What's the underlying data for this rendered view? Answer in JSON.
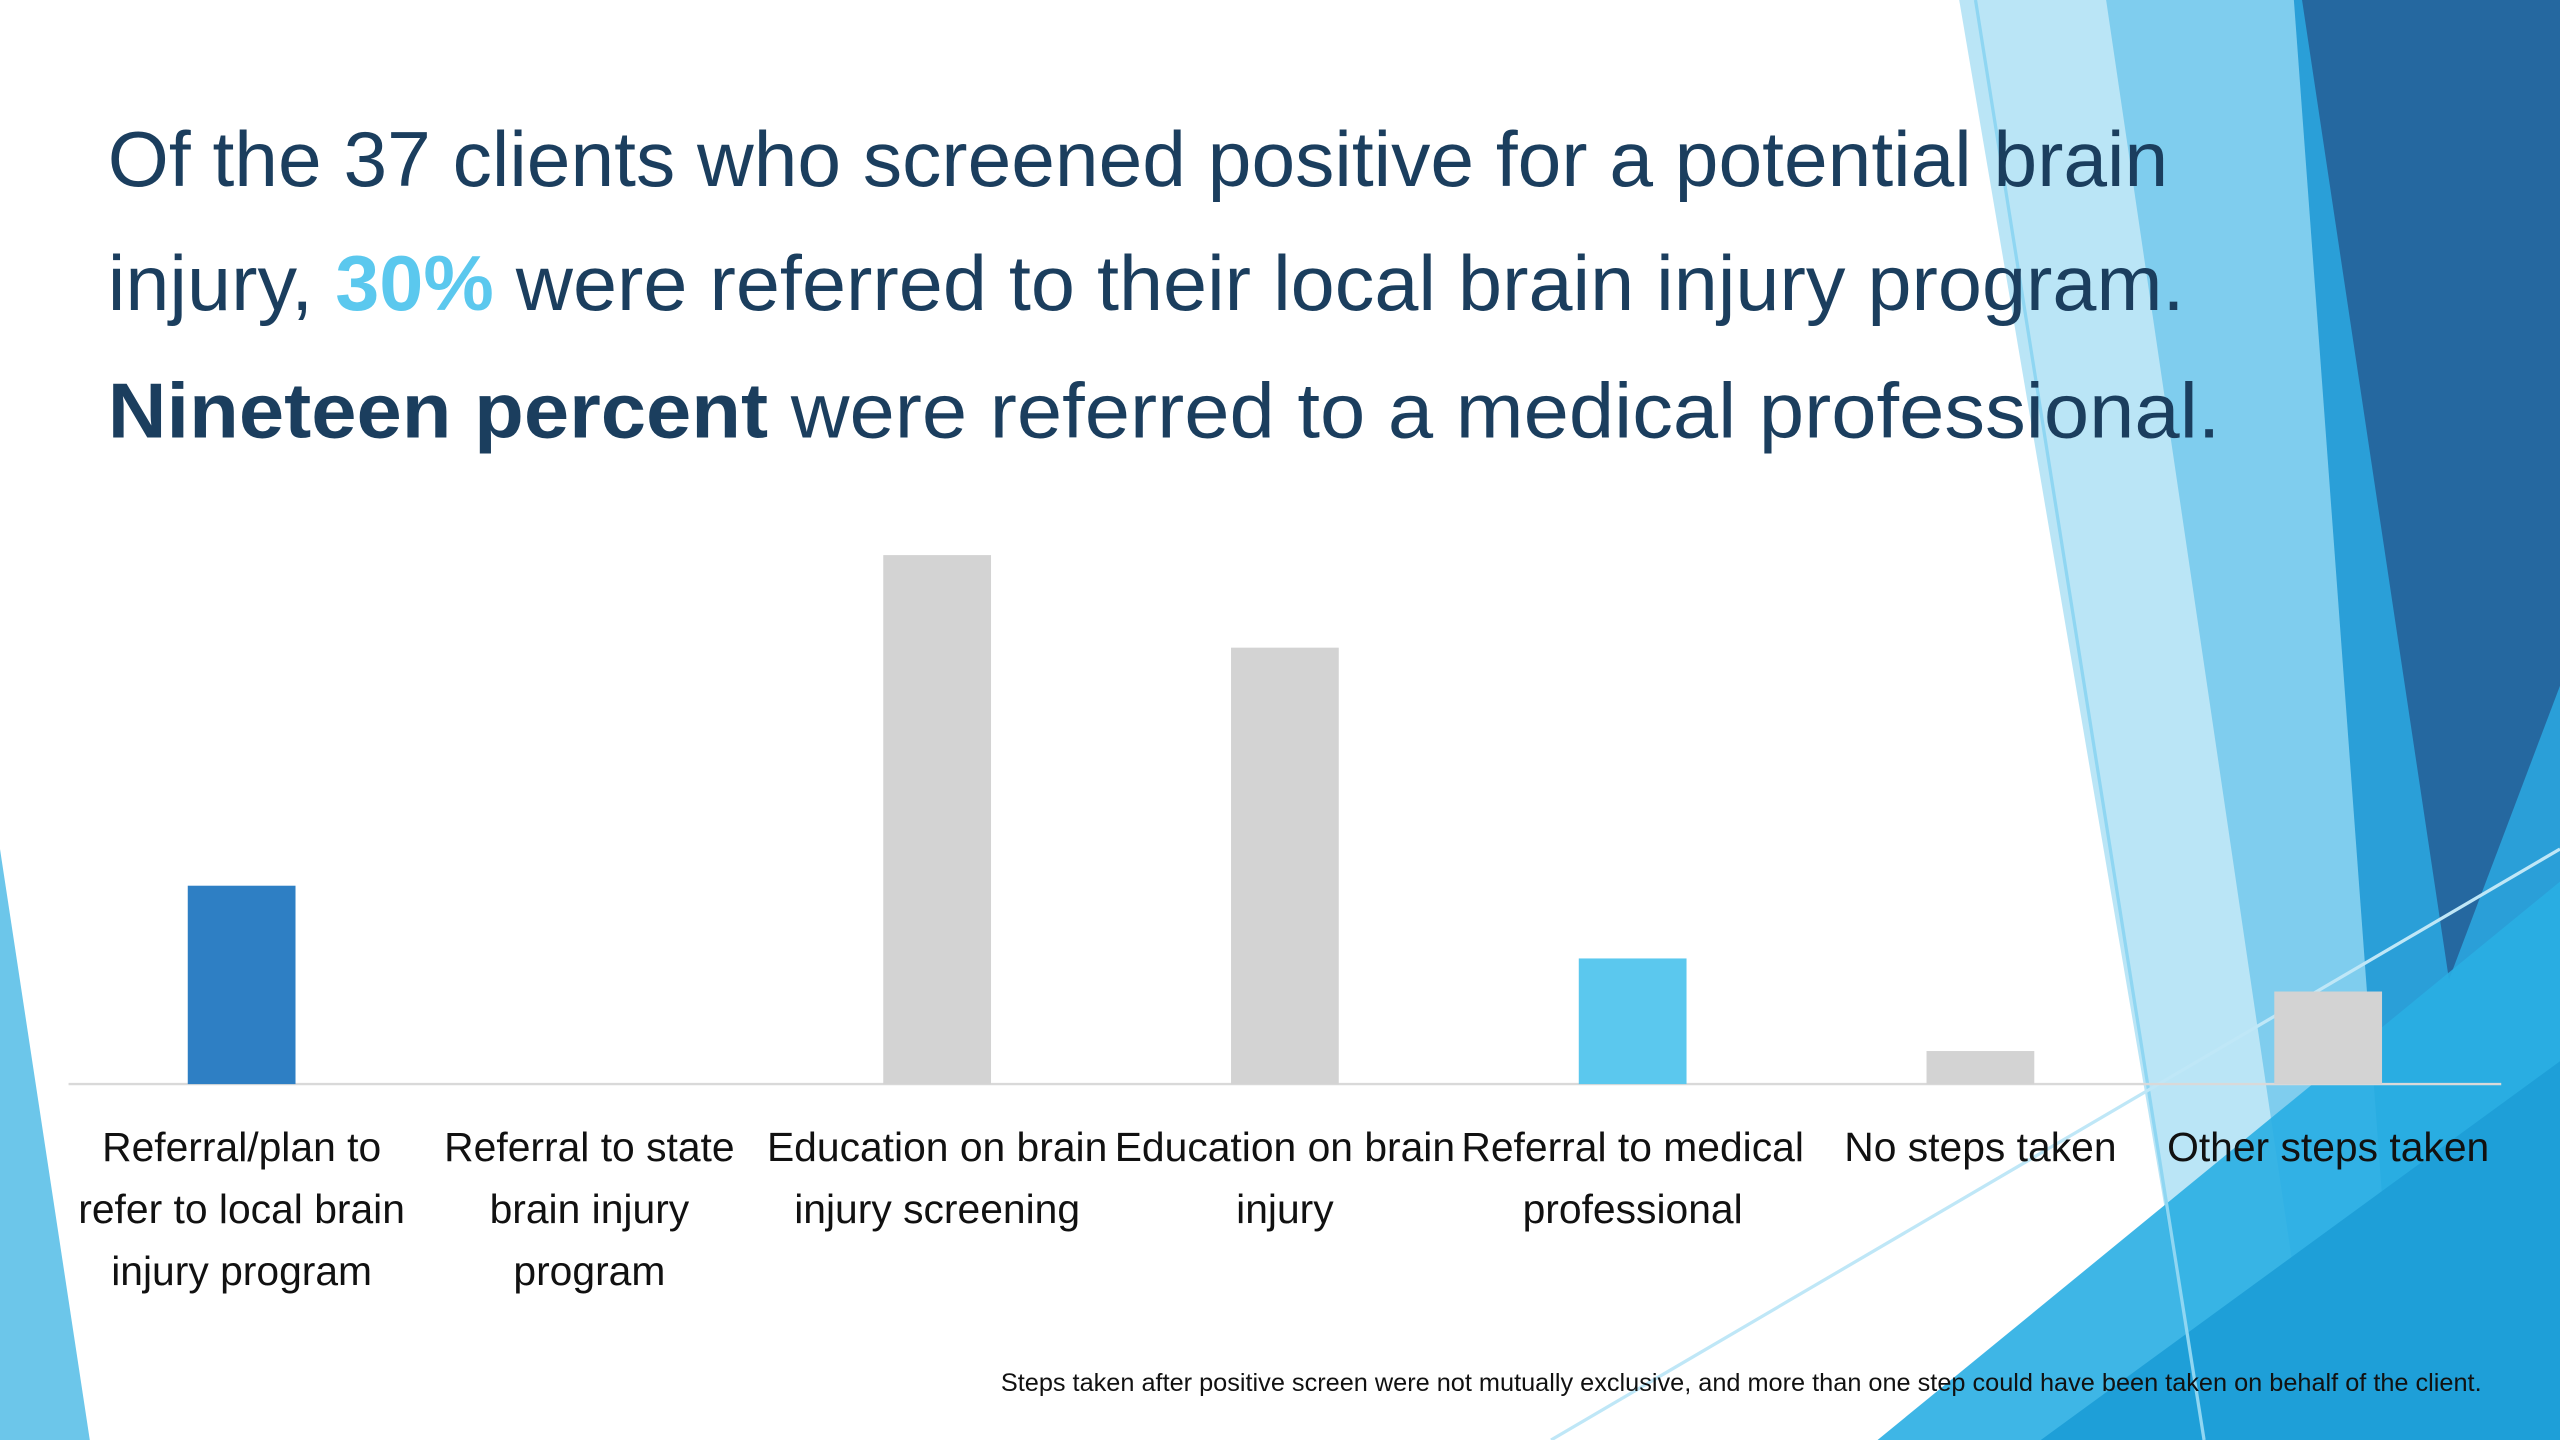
{
  "chart_data": {
    "type": "bar",
    "title_lines": [
      [
        "Of the 37 clients who screened positive for a potential brain"
      ],
      [
        "injury, ",
        "30%",
        " were referred to their local brain injury program."
      ],
      [
        "Nineteen percent",
        " were referred to a medical professional."
      ]
    ],
    "categories": [
      "Referral/plan to refer to local brain injury program",
      "Referral to state brain injury program",
      "Education on brain injury screening",
      "Education on brain injury",
      "Referral to medical professional",
      "No steps taken",
      "Other steps taken"
    ],
    "values": [
      30,
      0,
      80,
      66,
      19,
      5,
      14
    ],
    "colors": [
      "#2e7fc4",
      "#d3d3d3",
      "#d3d3d3",
      "#d3d3d3",
      "#5bc8ee",
      "#d3d3d3",
      "#d3d3d3"
    ],
    "ylim": [
      0,
      80
    ],
    "footnote": "Steps taken after positive screen were not mutually exclusive, and more than one step could have been taken on behalf of the client."
  }
}
